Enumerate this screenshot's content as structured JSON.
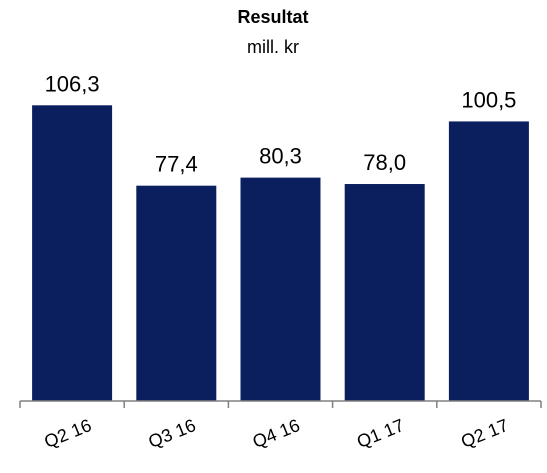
{
  "chart_data": {
    "type": "bar",
    "title": "Resultat",
    "subtitle": "mill. kr",
    "categories": [
      "Q2 16",
      "Q3 16",
      "Q4 16",
      "Q1 17",
      "Q2 17"
    ],
    "values": [
      106.3,
      77.4,
      80.3,
      78.0,
      100.5
    ],
    "data_labels": [
      "106,3",
      "77,4",
      "80,3",
      "78,0",
      "100,5"
    ],
    "xlabel": "",
    "ylabel": "",
    "ylim": [
      0,
      110
    ],
    "grid": false,
    "legend": "none",
    "bar_color": "#0b1f5e"
  }
}
